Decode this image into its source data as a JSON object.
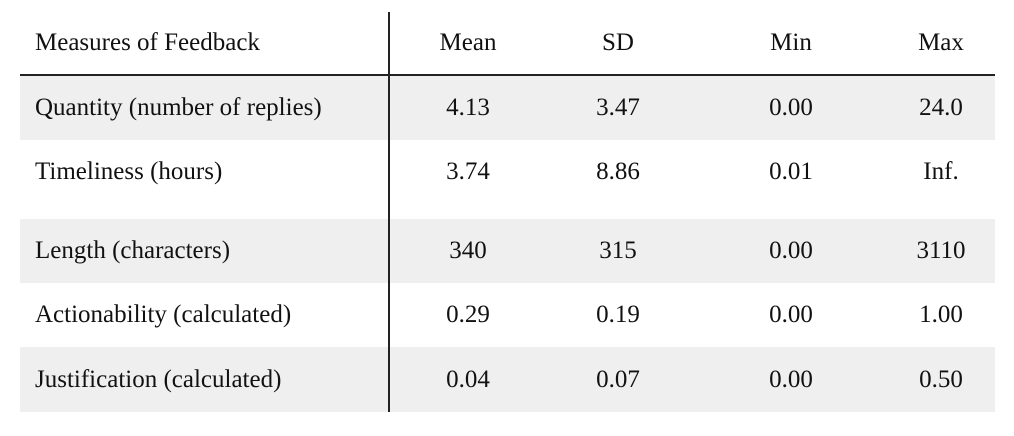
{
  "table": {
    "headers": [
      "Measures of Feedback",
      "Mean",
      "SD",
      "Min",
      "Max"
    ],
    "rows": [
      {
        "measure": "Quantity (number of replies)",
        "mean": "4.13",
        "sd": "3.47",
        "min": "0.00",
        "max": "24.0"
      },
      {
        "measure": "Timeliness (hours)",
        "mean": "3.74",
        "sd": "8.86",
        "min": "0.01",
        "max": "Inf."
      },
      {
        "measure": "Length (characters)",
        "mean": "340",
        "sd": "315",
        "min": "0.00",
        "max": "3110"
      },
      {
        "measure": "Actionability (calculated)",
        "mean": "0.29",
        "sd": "0.19",
        "min": "0.00",
        "max": "1.00"
      },
      {
        "measure": "Justification (calculated)",
        "mean": "0.04",
        "sd": "0.07",
        "min": "0.00",
        "max": "0.50"
      }
    ]
  },
  "colors": {
    "shaded_row": "#efefef",
    "rule": "#222222",
    "text": "#111111"
  }
}
